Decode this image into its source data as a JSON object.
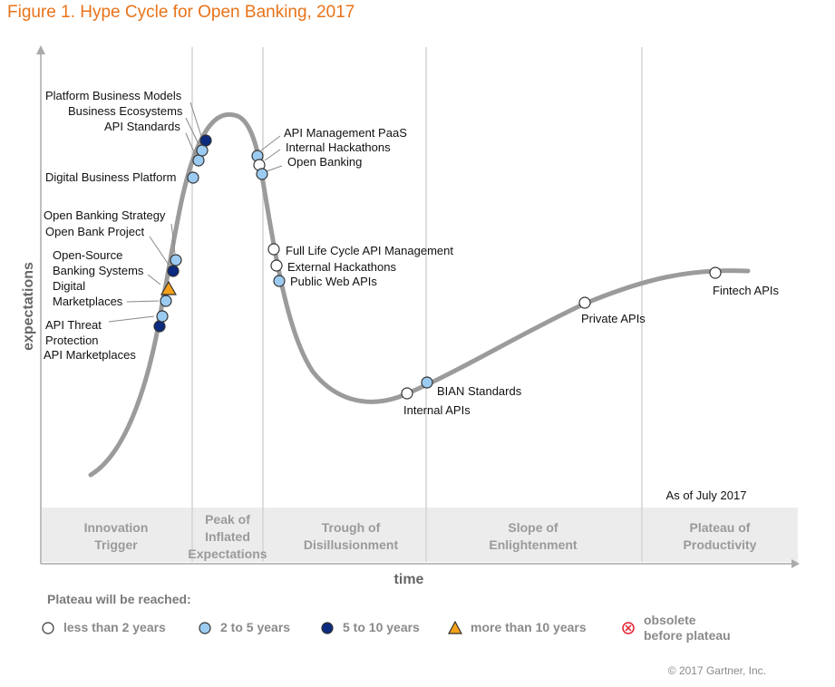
{
  "title": "Figure 1. Hype Cycle for Open Banking, 2017",
  "copyright": "© 2017 Gartner, Inc.",
  "chart_data": {
    "type": "hype-cycle",
    "title": "Figure 1. Hype Cycle for Open Banking, 2017",
    "xlabel": "time",
    "ylabel": "expectations",
    "as_of": "As of July 2017",
    "phases": [
      {
        "name": "Innovation Trigger",
        "lines": [
          "Innovation",
          "Trigger"
        ]
      },
      {
        "name": "Peak of Inflated Expectations",
        "lines": [
          "Peak of",
          "Inflated",
          "Expectations"
        ]
      },
      {
        "name": "Trough of Disillusionment",
        "lines": [
          "Trough of",
          "Disillusionment"
        ]
      },
      {
        "name": "Slope of Enlightenment",
        "lines": [
          "Slope of",
          "Enlightenment"
        ]
      },
      {
        "name": "Plateau of Productivity",
        "lines": [
          "Plateau of",
          "Productivity"
        ]
      }
    ],
    "legend": {
      "title": "Plateau will be reached:",
      "entries": [
        {
          "key": "lt2",
          "label": "less than 2 years",
          "color": "#ffffff",
          "shape": "circle"
        },
        {
          "key": "2to5",
          "label": "2 to 5 years",
          "color": "#9ccbf2",
          "shape": "circle"
        },
        {
          "key": "5to10",
          "label": "5 to 10 years",
          "color": "#0c2a7e",
          "shape": "circle"
        },
        {
          "key": "gt10",
          "label": "more than 10 years",
          "color": "#f5a01a",
          "shape": "triangle"
        },
        {
          "key": "obsolete",
          "label": "obsolete before plateau",
          "lines": [
            "obsolete",
            "before plateau"
          ],
          "color": "#e0202f",
          "shape": "x-circle"
        }
      ]
    },
    "technologies": [
      {
        "name": "API Marketplaces",
        "lines": [
          "API Marketplaces"
        ],
        "phase": "Innovation Trigger",
        "plateau": "5to10"
      },
      {
        "name": "API Threat Protection",
        "lines": [
          "API Threat",
          "Protection"
        ],
        "phase": "Innovation Trigger",
        "plateau": "2to5"
      },
      {
        "name": "Digital Marketplaces",
        "lines": [
          "Digital",
          "Marketplaces"
        ],
        "phase": "Innovation Trigger",
        "plateau": "2to5"
      },
      {
        "name": "Open-Source Banking Systems",
        "lines": [
          "Open-Source",
          "Banking Systems"
        ],
        "phase": "Innovation Trigger",
        "plateau": "gt10"
      },
      {
        "name": "Open Bank Project",
        "lines": [
          "Open Bank Project"
        ],
        "phase": "Innovation Trigger",
        "plateau": "5to10"
      },
      {
        "name": "Open Banking Strategy",
        "lines": [
          "Open Banking Strategy"
        ],
        "phase": "Innovation Trigger",
        "plateau": "2to5"
      },
      {
        "name": "Digital Business Platform",
        "lines": [
          "Digital Business Platform"
        ],
        "phase": "Peak of Inflated Expectations",
        "plateau": "2to5"
      },
      {
        "name": "API Standards",
        "lines": [
          "API Standards"
        ],
        "phase": "Peak of Inflated Expectations",
        "plateau": "2to5"
      },
      {
        "name": "Business Ecosystems",
        "lines": [
          "Business Ecosystems"
        ],
        "phase": "Peak of Inflated Expectations",
        "plateau": "2to5"
      },
      {
        "name": "Platform Business Models",
        "lines": [
          "Platform Business Models"
        ],
        "phase": "Peak of Inflated Expectations",
        "plateau": "5to10"
      },
      {
        "name": "API Management PaaS",
        "lines": [
          "API Management PaaS"
        ],
        "phase": "Trough of Disillusionment",
        "plateau": "2to5"
      },
      {
        "name": "Internal Hackathons",
        "lines": [
          "Internal Hackathons"
        ],
        "phase": "Trough of Disillusionment",
        "plateau": "lt2"
      },
      {
        "name": "Open Banking",
        "lines": [
          "Open Banking"
        ],
        "phase": "Trough of Disillusionment",
        "plateau": "2to5"
      },
      {
        "name": "Full Life Cycle API Management",
        "lines": [
          "Full Life Cycle API Management"
        ],
        "phase": "Trough of Disillusionment",
        "plateau": "lt2"
      },
      {
        "name": "External Hackathons",
        "lines": [
          "External Hackathons"
        ],
        "phase": "Trough of Disillusionment",
        "plateau": "lt2"
      },
      {
        "name": "Public Web APIs",
        "lines": [
          "Public Web APIs"
        ],
        "phase": "Trough of Disillusionment",
        "plateau": "2to5"
      },
      {
        "name": "Internal APIs",
        "lines": [
          "Internal APIs"
        ],
        "phase": "Trough of Disillusionment",
        "plateau": "lt2"
      },
      {
        "name": "BIAN Standards",
        "lines": [
          "BIAN Standards"
        ],
        "phase": "Slope of Enlightenment",
        "plateau": "2to5"
      },
      {
        "name": "Private APIs",
        "lines": [
          "Private APIs"
        ],
        "phase": "Slope of Enlightenment",
        "plateau": "lt2"
      },
      {
        "name": "Fintech APIs",
        "lines": [
          "Fintech APIs"
        ],
        "phase": "Plateau of Productivity",
        "plateau": "lt2"
      }
    ]
  }
}
